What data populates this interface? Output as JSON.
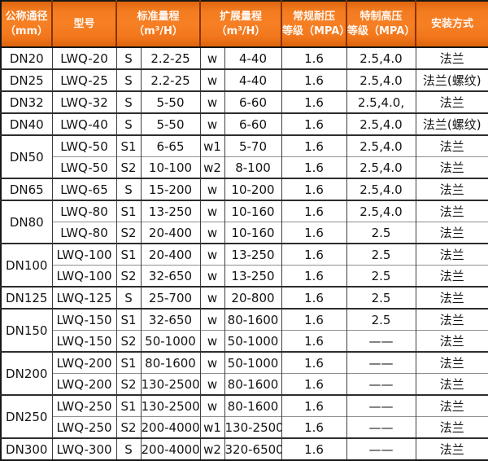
{
  "colors": {
    "header_bg": "#f47c20",
    "header_divider": "#8a3304",
    "header_text": "#ffffff",
    "outer_border": "#161616",
    "group_border": "#2d2d2d",
    "inner_border": "#8f8f8f",
    "cell_text": "#141414"
  },
  "table": {
    "headers": [
      {
        "line1": "公称通径",
        "line2": "（mm）"
      },
      {
        "line1": "型号",
        "line2": ""
      },
      {
        "line1": "标准量程",
        "line2": "（m³/H）"
      },
      {
        "line1": "扩展量程",
        "line2": "（m³/H）"
      },
      {
        "line1": "常规耐压",
        "line2": "等级（MPA）"
      },
      {
        "line1": "特制高压",
        "line2": "等级（MPA）"
      },
      {
        "line1": "安装方式",
        "line2": ""
      }
    ],
    "groups": [
      {
        "dn": "DN20",
        "rows": [
          {
            "model": "LWQ-20",
            "s": "S",
            "std": "2.2-25",
            "w": "w",
            "ext": "4-40",
            "normal": "1.6",
            "high": "2.5,4.0",
            "install": "法兰"
          }
        ]
      },
      {
        "dn": "DN25",
        "rows": [
          {
            "model": "LWQ-25",
            "s": "S",
            "std": "2.2-25",
            "w": "w",
            "ext": "4-40",
            "normal": "1.6",
            "high": "2.5,4.0",
            "install": "法兰(螺纹)"
          }
        ]
      },
      {
        "dn": "DN32",
        "rows": [
          {
            "model": "LWQ-32",
            "s": "S",
            "std": "5-50",
            "w": "w",
            "ext": "6-60",
            "normal": "1.6",
            "high": "2.5,4.0,",
            "install": "法兰"
          }
        ]
      },
      {
        "dn": "DN40",
        "rows": [
          {
            "model": "LWQ-40",
            "s": "S",
            "std": "5-50",
            "w": "w",
            "ext": "6-60",
            "normal": "1.6",
            "high": "2.5,4.0",
            "install": "法兰(螺纹)"
          }
        ]
      },
      {
        "dn": "DN50",
        "rows": [
          {
            "model": "LWQ-50",
            "s": "S1",
            "std": "6-65",
            "w": "w1",
            "ext": "5-70",
            "normal": "1.6",
            "high": "2.5,4.0",
            "install": "法兰"
          },
          {
            "model": "LWQ-50",
            "s": "S2",
            "std": "10-100",
            "w": "w2",
            "ext": "8-100",
            "normal": "1.6",
            "high": "2.5,4.0",
            "install": "法兰"
          }
        ]
      },
      {
        "dn": "DN65",
        "rows": [
          {
            "model": "LWQ-65",
            "s": "S",
            "std": "15-200",
            "w": "w",
            "ext": "10-200",
            "normal": "1.6",
            "high": "2.5,4.0",
            "install": "法兰"
          }
        ]
      },
      {
        "dn": "DN80",
        "rows": [
          {
            "model": "LWQ-80",
            "s": "S1",
            "std": "13-250",
            "w": "w",
            "ext": "10-160",
            "normal": "1.6",
            "high": "2.5,4.0",
            "install": "法兰"
          },
          {
            "model": "LWQ-80",
            "s": "S2",
            "std": "20-400",
            "w": "w",
            "ext": "10-160",
            "normal": "1.6",
            "high": "2.5",
            "install": "法兰"
          }
        ]
      },
      {
        "dn": "DN100",
        "rows": [
          {
            "model": "LWQ-100",
            "s": "S1",
            "std": "20-400",
            "w": "w",
            "ext": "13-250",
            "normal": "1.6",
            "high": "2.5",
            "install": "法兰"
          },
          {
            "model": "LWQ-100",
            "s": "S2",
            "std": "32-650",
            "w": "w",
            "ext": "13-250",
            "normal": "1.6",
            "high": "2.5",
            "install": "法兰"
          }
        ]
      },
      {
        "dn": "DN125",
        "rows": [
          {
            "model": "LWQ-125",
            "s": "S",
            "std": "25-700",
            "w": "w",
            "ext": "20-800",
            "normal": "1.6",
            "high": "2.5",
            "install": "法兰"
          }
        ]
      },
      {
        "dn": "DN150",
        "rows": [
          {
            "model": "LWQ-150",
            "s": "S1",
            "std": "32-650",
            "w": "w",
            "ext": "80-1600",
            "normal": "1.6",
            "high": "2.5",
            "install": "法兰"
          },
          {
            "model": "LWQ-150",
            "s": "S2",
            "std": "50-1000",
            "w": "w",
            "ext": "50-1000",
            "normal": "1.6",
            "high": "——",
            "install": "法兰"
          }
        ]
      },
      {
        "dn": "DN200",
        "rows": [
          {
            "model": "LWQ-200",
            "s": "S1",
            "std": "80-1600",
            "w": "w",
            "ext": "50-1000",
            "normal": "1.6",
            "high": "——",
            "install": "法兰"
          },
          {
            "model": "LWQ-200",
            "s": "S2",
            "std": "130-2500",
            "w": "w",
            "ext": "80-1600",
            "normal": "1.6",
            "high": "——",
            "install": "法兰"
          }
        ]
      },
      {
        "dn": "DN250",
        "rows": [
          {
            "model": "LWQ-250",
            "s": "S1",
            "std": "130-2500",
            "w": "w",
            "ext": "80-1600",
            "normal": "1.6",
            "high": "——",
            "install": "法兰"
          },
          {
            "model": "LWQ-250",
            "s": "S2",
            "std": "200-4000",
            "w": "w1",
            "ext": "130-2500",
            "normal": "1.6",
            "high": "——",
            "install": "法兰"
          }
        ]
      },
      {
        "dn": "DN300",
        "rows": [
          {
            "model": "LWQ-300",
            "s": "S",
            "std": "200-4000",
            "w": "w2",
            "ext": "320-6500",
            "normal": "1.6",
            "high": "——",
            "install": "法兰"
          }
        ]
      }
    ]
  }
}
